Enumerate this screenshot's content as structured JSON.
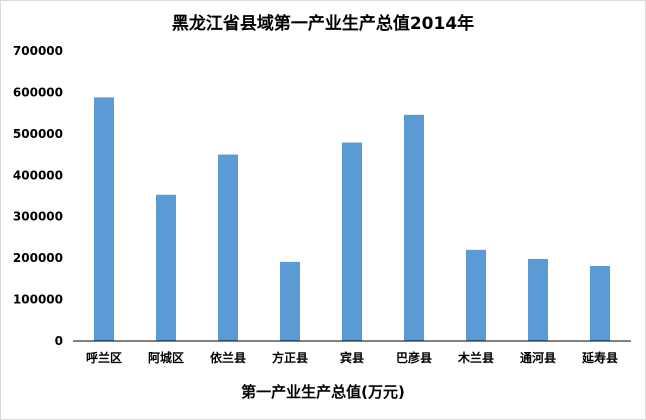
{
  "chart_data": {
    "type": "bar",
    "title": "黑龙江省县域第一产业生产总值2014年",
    "xlabel": "第一产业生产总值(万元)",
    "ylabel": "",
    "categories": [
      "呼兰区",
      "阿城区",
      "依兰县",
      "方正县",
      "宾县",
      "巴彦县",
      "木兰县",
      "通河县",
      "延寿县"
    ],
    "values": [
      588000,
      353000,
      450000,
      191000,
      479000,
      546000,
      220000,
      198000,
      181000
    ],
    "ylim": [
      0,
      700000
    ],
    "yticks": [
      "0",
      "100000",
      "200000",
      "300000",
      "400000",
      "500000",
      "600000",
      "700000"
    ],
    "grid": false,
    "legend": "none",
    "bar_color": "#5b9bd5",
    "axis_color": "#000000"
  }
}
